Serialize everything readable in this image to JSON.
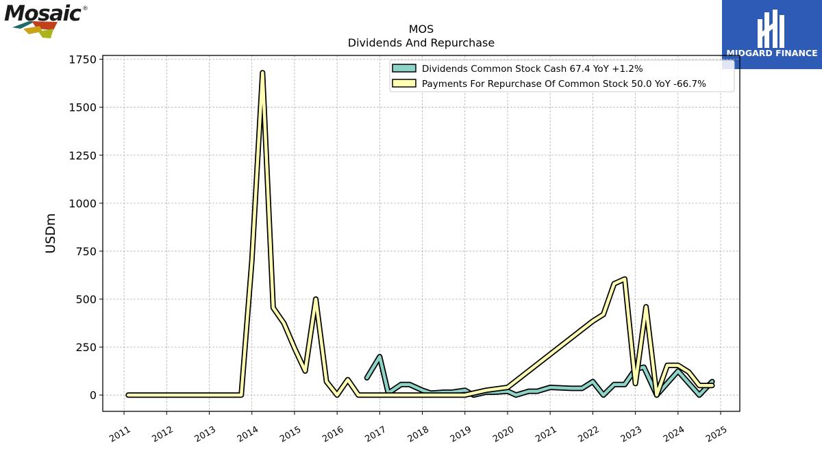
{
  "logos": {
    "company_wordmark": "Mosaic",
    "trademark": "®",
    "brand_name": "MIDGARD FINANCE"
  },
  "chart_data": {
    "type": "line",
    "title": "MOS",
    "subtitle": "Dividends And Repurchase",
    "ylabel": "USDm",
    "xlabel": "",
    "ylim": [
      -85,
      1770
    ],
    "xlim": [
      2010.5,
      2025.45
    ],
    "yticks": [
      0,
      250,
      500,
      750,
      1000,
      1250,
      1500,
      1750
    ],
    "xticks": [
      "2011",
      "2012",
      "2013",
      "2014",
      "2015",
      "2016",
      "2017",
      "2018",
      "2019",
      "2020",
      "2021",
      "2022",
      "2023",
      "2024",
      "2025"
    ],
    "grid": true,
    "legend_position": "top-right",
    "series": [
      {
        "name": "Dividends Common Stock Cash",
        "legend_label": "Dividends Common Stock Cash  67.4 YoY +1.2%",
        "color": "#8dd3c7",
        "points": [
          [
            2016.7,
            90
          ],
          [
            2017.0,
            200
          ],
          [
            2017.2,
            10
          ],
          [
            2017.5,
            55
          ],
          [
            2017.7,
            55
          ],
          [
            2018.0,
            25
          ],
          [
            2018.2,
            10
          ],
          [
            2018.5,
            15
          ],
          [
            2018.7,
            15
          ],
          [
            2019.0,
            25
          ],
          [
            2019.2,
            0
          ],
          [
            2019.5,
            15
          ],
          [
            2019.7,
            15
          ],
          [
            2020.0,
            20
          ],
          [
            2020.2,
            0
          ],
          [
            2020.5,
            20
          ],
          [
            2020.7,
            20
          ],
          [
            2021.0,
            40
          ],
          [
            2021.5,
            35
          ],
          [
            2021.75,
            35
          ],
          [
            2022.0,
            70
          ],
          [
            2022.25,
            0
          ],
          [
            2022.5,
            55
          ],
          [
            2022.75,
            55
          ],
          [
            2023.0,
            135
          ],
          [
            2023.2,
            145
          ],
          [
            2023.5,
            0
          ],
          [
            2024.0,
            125
          ],
          [
            2024.5,
            0
          ],
          [
            2024.8,
            70
          ]
        ]
      },
      {
        "name": "Payments For Repurchase Of Common Stock",
        "legend_label": "Payments For Repurchase Of Common Stock  50.0 YoY -66.7%",
        "color": "#ffffb3",
        "points": [
          [
            2011.1,
            0
          ],
          [
            2013.75,
            0
          ],
          [
            2014.0,
            700
          ],
          [
            2014.25,
            1680
          ],
          [
            2014.5,
            455
          ],
          [
            2014.75,
            375
          ],
          [
            2015.0,
            245
          ],
          [
            2015.25,
            125
          ],
          [
            2015.5,
            500
          ],
          [
            2015.75,
            70
          ],
          [
            2016.0,
            0
          ],
          [
            2016.25,
            80
          ],
          [
            2016.5,
            0
          ],
          [
            2019.0,
            0
          ],
          [
            2019.5,
            25
          ],
          [
            2020.0,
            40
          ],
          [
            2022.0,
            385
          ],
          [
            2022.25,
            420
          ],
          [
            2022.5,
            580
          ],
          [
            2022.75,
            605
          ],
          [
            2023.0,
            60
          ],
          [
            2023.25,
            460
          ],
          [
            2023.5,
            0
          ],
          [
            2023.75,
            155
          ],
          [
            2024.0,
            155
          ],
          [
            2024.25,
            120
          ],
          [
            2024.5,
            50
          ],
          [
            2024.8,
            50
          ]
        ]
      }
    ]
  }
}
